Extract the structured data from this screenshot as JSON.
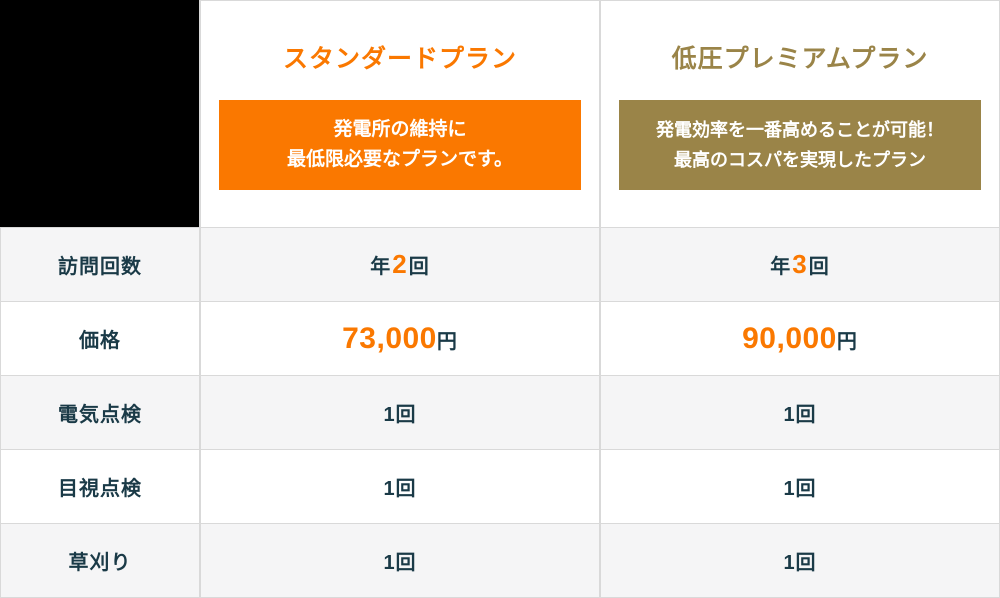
{
  "colors": {
    "accent_orange": "#fa7800",
    "accent_olive": "#9a8448",
    "text_dark": "#1a3a47",
    "row_alt_bg": "#f5f5f6",
    "grid_border": "#d9d9d9",
    "corner_bg": "#000000",
    "box_text": "#ffffff"
  },
  "plans": [
    {
      "title": "スタンダードプラン",
      "desc_line1": "発電所の維持に",
      "desc_line2": "最低限必要なプランです。"
    },
    {
      "title": "低圧プレミアムプラン",
      "desc_line1": "発電効率を一番高めることが可能！",
      "desc_line2": "最高のコスパを実現したプラン"
    }
  ],
  "rows": [
    {
      "label": "訪問回数",
      "values": [
        {
          "prefix": "年",
          "count": "2",
          "suffix": "回"
        },
        {
          "prefix": "年",
          "count": "3",
          "suffix": "回"
        }
      ]
    },
    {
      "label": "価格",
      "values": [
        {
          "amount": "73,000",
          "unit": "円"
        },
        {
          "amount": "90,000",
          "unit": "円"
        }
      ]
    },
    {
      "label": "電気点検",
      "values": [
        "1回",
        "1回"
      ]
    },
    {
      "label": "目視点検",
      "values": [
        "1回",
        "1回"
      ]
    },
    {
      "label": "草刈り",
      "values": [
        "1回",
        "1回"
      ]
    }
  ]
}
